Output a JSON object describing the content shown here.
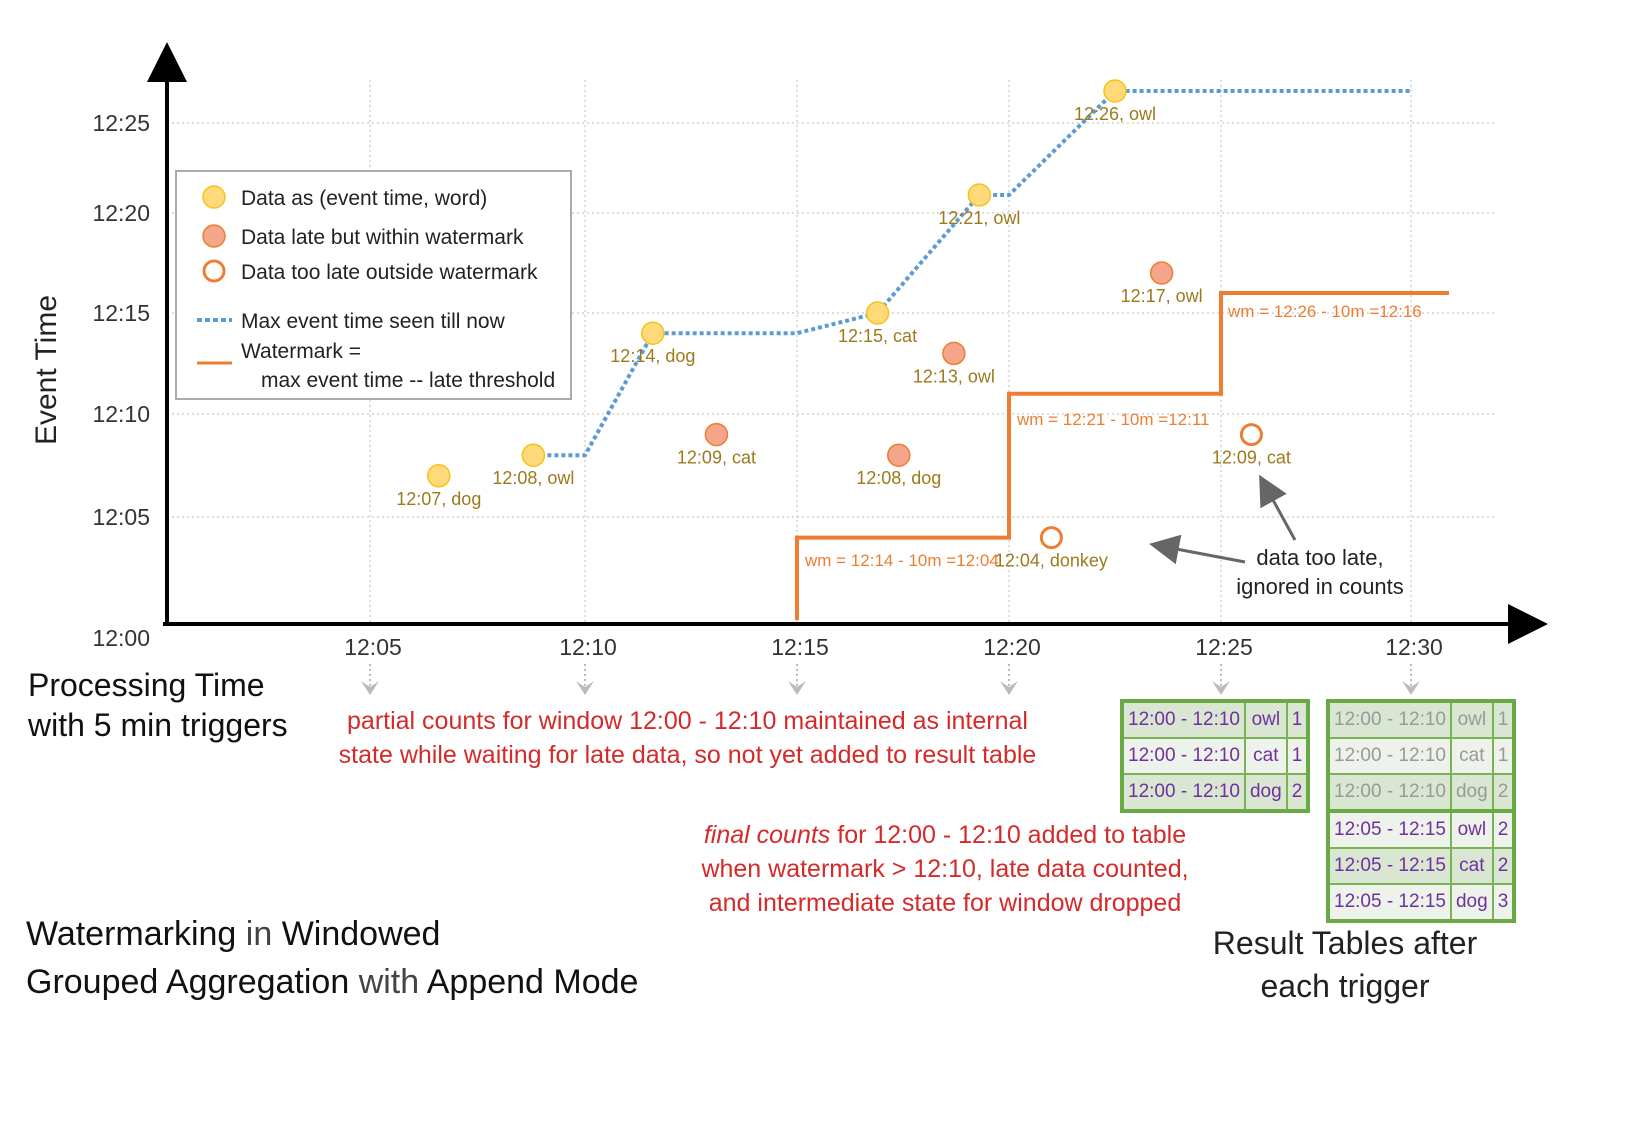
{
  "title": {
    "parts": [
      "Watermarking",
      " in ",
      "Windowed",
      "Grouped Aggregation",
      " with ",
      "Append Mode"
    ]
  },
  "y_axis_label": "Event Time",
  "x_axis_label": [
    "Processing Time",
    "with 5 min triggers"
  ],
  "y_ticks": [
    "12:00",
    "12:05",
    "12:10",
    "12:15",
    "12:20",
    "12:25"
  ],
  "x_ticks": [
    "12:05",
    "12:10",
    "12:15",
    "12:20",
    "12:25",
    "12:30"
  ],
  "legend": {
    "on_time": "Data as (event time, word)",
    "late": "Data late but within watermark",
    "too_late": "Data too late outside watermark",
    "max_event": "Max event time seen till now",
    "watermark_1": "Watermark =",
    "watermark_2": "max event time -- late threshold"
  },
  "colors": {
    "on_time": "#ffd97a",
    "late": "#f4a58a",
    "too_late": "#ed7d31",
    "max_line": "#5b9bd5",
    "watermark": "#ed7d31",
    "label": "#9c7a1c",
    "note": "#d42a2a",
    "table_border": "#6aaa45",
    "table_text": "#7030a0"
  },
  "points": [
    {
      "proc": 6.6,
      "event": 7,
      "label": "12:07, dog",
      "kind": "on_time"
    },
    {
      "proc": 8.8,
      "event": 8,
      "label": "12:08, owl",
      "kind": "on_time"
    },
    {
      "proc": 11.6,
      "event": 14,
      "label": "12:14, dog",
      "kind": "on_time"
    },
    {
      "proc": 13.1,
      "event": 9,
      "label": "12:09, cat",
      "kind": "late"
    },
    {
      "proc": 16.9,
      "event": 15,
      "label": "12:15, cat",
      "kind": "on_time"
    },
    {
      "proc": 17.4,
      "event": 8,
      "label": "12:08, dog",
      "kind": "late"
    },
    {
      "proc": 18.7,
      "event": 13,
      "label": "12:13, owl",
      "kind": "late"
    },
    {
      "proc": 19.3,
      "event": 21,
      "label": "12:21, owl",
      "kind": "on_time"
    },
    {
      "proc": 21.0,
      "event": 4,
      "label": "12:04, donkey",
      "kind": "too_late"
    },
    {
      "proc": 22.5,
      "event": 26,
      "label": "12:26, owl",
      "kind": "on_time"
    },
    {
      "proc": 23.6,
      "event": 17,
      "label": "12:17, owl",
      "kind": "late"
    },
    {
      "proc": 25.8,
      "event": 9,
      "label": "12:09, cat",
      "kind": "too_late"
    }
  ],
  "max_event_line": [
    [
      8.8,
      8
    ],
    [
      10,
      8
    ],
    [
      11.6,
      14
    ],
    [
      15,
      14
    ],
    [
      16.9,
      15
    ],
    [
      19.3,
      21
    ],
    [
      20,
      21
    ],
    [
      22.5,
      26
    ],
    [
      30,
      26
    ]
  ],
  "watermark_line": [
    [
      15,
      0
    ],
    [
      15,
      4
    ],
    [
      20,
      4
    ],
    [
      20,
      11
    ],
    [
      25,
      11
    ],
    [
      25,
      16
    ],
    [
      31,
      16
    ]
  ],
  "watermark_labels": [
    "wm = 12:14 - 10m =12:04",
    "wm = 12:21 - 10m =12:11",
    "wm = 12:26 - 10m =12:16"
  ],
  "too_late_note": [
    "data too late,",
    "ignored in counts"
  ],
  "partial_note": [
    "partial counts for window 12:00 - 12:10 maintained as internal",
    "state while waiting for late data, so not yet added  to result table"
  ],
  "final_note": {
    "em": "final counts",
    "rest": " for 12:00 - 12:10 added to table",
    "line2": "when watermark > 12:10, late data counted,",
    "line3": "and intermediate state for window dropped"
  },
  "result_tables": [
    {
      "rows": [
        [
          "12:00 - 12:10",
          "owl",
          "1"
        ],
        [
          "12:00 - 12:10",
          "cat",
          "1"
        ],
        [
          "12:00 - 12:10",
          "dog",
          "2"
        ]
      ]
    },
    {
      "rows": [
        [
          "12:00 - 12:10",
          "owl",
          "1"
        ],
        [
          "12:00 - 12:10",
          "cat",
          "1"
        ],
        [
          "12:00 - 12:10",
          "dog",
          "2"
        ],
        [
          "12:05 - 12:15",
          "owl",
          "2"
        ],
        [
          "12:05 - 12:15",
          "cat",
          "2"
        ],
        [
          "12:05 - 12:15",
          "dog",
          "3"
        ]
      ]
    }
  ],
  "result_caption": [
    "Result Tables after",
    "each trigger"
  ]
}
